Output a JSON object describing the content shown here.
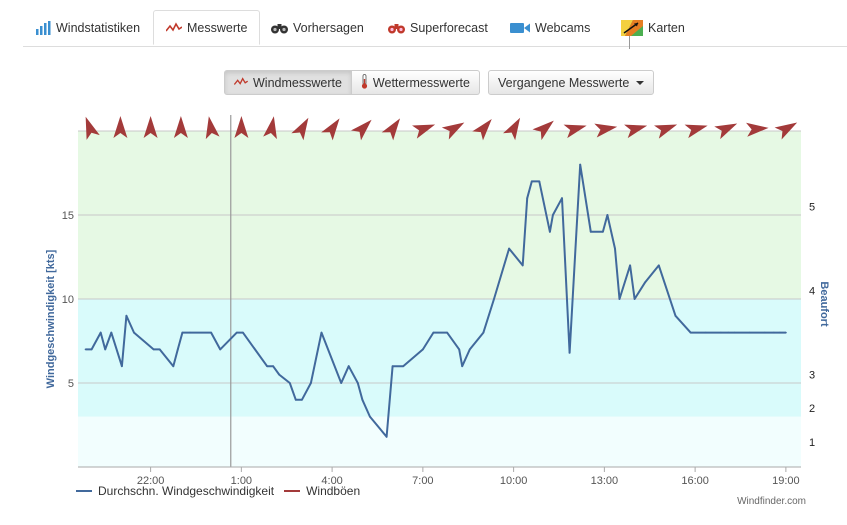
{
  "tabs": [
    {
      "label": "Windstatistiken",
      "icon": "bar-chart-icon",
      "active": false
    },
    {
      "label": "Messwerte",
      "icon": "wind-line-icon",
      "active": true
    },
    {
      "label": "Vorhersagen",
      "icon": "binoculars-icon",
      "active": false
    },
    {
      "label": "Superforecast",
      "icon": "binoculars-red-icon",
      "active": false
    },
    {
      "label": "Webcams",
      "icon": "camera-icon",
      "active": false
    },
    {
      "label": "Karten",
      "icon": "map-icon",
      "active": false
    }
  ],
  "toggle": {
    "wind_label": "Windmesswerte",
    "weather_label": "Wettermesswerte",
    "history_label": "Vergangene Messwerte"
  },
  "colors": {
    "line": "#41699c",
    "gust": "#a33a3a",
    "band_green": "#e6f9e4",
    "band_cyan": "#d9fbfb",
    "band_light": "#f2fefe"
  },
  "chart_data": {
    "type": "line",
    "ylabel": "Windgeschwindigkeit [kts]",
    "y2label": "Beaufort",
    "ylim": [
      0,
      20
    ],
    "yticks": [
      5,
      10,
      15
    ],
    "y2ticks": [
      {
        "label": "1",
        "kts": 1.5
      },
      {
        "label": "2",
        "kts": 3.5
      },
      {
        "label": "3",
        "kts": 5.5
      },
      {
        "label": "4",
        "kts": 10.5
      },
      {
        "label": "5",
        "kts": 15.5
      }
    ],
    "bands": [
      {
        "from": 0,
        "to": 3,
        "color": "#f2fefe"
      },
      {
        "from": 3,
        "to": 10,
        "color": "#d9fbfb"
      },
      {
        "from": 10,
        "to": 20,
        "color": "#e6f9e4"
      }
    ],
    "xlim": [
      19.6,
      43.5
    ],
    "xticks": [
      {
        "label": "22:00",
        "h": 22
      },
      {
        "label": "1:00",
        "h": 25
      },
      {
        "label": "4:00",
        "h": 28
      },
      {
        "label": "7:00",
        "h": 31
      },
      {
        "label": "10:00",
        "h": 34
      },
      {
        "label": "13:00",
        "h": 37
      },
      {
        "label": "16:00",
        "h": 40
      },
      {
        "label": "19:00",
        "h": 43
      }
    ],
    "now_marker_h": 24.65,
    "series": [
      {
        "name": "Durchschn. Windgeschwindigkeit",
        "x": [
          19.85,
          20.05,
          20.35,
          20.5,
          20.7,
          21.05,
          21.2,
          21.45,
          22.1,
          22.3,
          22.75,
          22.9,
          23.05,
          23.3,
          24.0,
          24.3,
          24.85,
          25.05,
          25.85,
          26.05,
          26.25,
          26.6,
          26.8,
          27.0,
          27.3,
          27.65,
          28.3,
          28.55,
          28.85,
          29.0,
          29.25,
          29.8,
          30.0,
          30.35,
          31.0,
          31.35,
          31.8,
          32.2,
          32.3,
          32.55,
          33.0,
          33.35,
          33.85,
          34.3,
          34.45,
          34.6,
          34.85,
          35.2,
          35.3,
          35.6,
          35.85,
          36.2,
          36.55,
          36.95,
          37.1,
          37.35,
          37.5,
          37.85,
          38.0,
          38.35,
          38.8,
          39.35,
          39.85,
          40.35,
          40.85,
          41.1,
          41.3,
          41.8,
          42.3,
          42.6,
          42.8,
          43.0
        ],
        "y": [
          7,
          7,
          8,
          7,
          8,
          6,
          9,
          8,
          7,
          7,
          6,
          7,
          8,
          8,
          8,
          7,
          8,
          8,
          6,
          6,
          5.5,
          5,
          4,
          4,
          5,
          8,
          5,
          6,
          5,
          4,
          3,
          1.8,
          6,
          6,
          7,
          8,
          8,
          7,
          6,
          7,
          8,
          10,
          13,
          12,
          16,
          17,
          17,
          14,
          15,
          16,
          6.8,
          18,
          14,
          14,
          15,
          13,
          10,
          12,
          10,
          11,
          12,
          9,
          8,
          8,
          8,
          8,
          8,
          8,
          8,
          8,
          8,
          8
        ]
      }
    ]
  },
  "arrows": [
    {
      "h": 20.0,
      "dir": 160
    },
    {
      "h": 21.0,
      "dir": 180
    },
    {
      "h": 22.0,
      "dir": 180
    },
    {
      "h": 23.0,
      "dir": 180
    },
    {
      "h": 24.0,
      "dir": 170
    },
    {
      "h": 25.0,
      "dir": 180
    },
    {
      "h": 26.0,
      "dir": 190
    },
    {
      "h": 27.0,
      "dir": 210
    },
    {
      "h": 28.0,
      "dir": 215
    },
    {
      "h": 29.0,
      "dir": 225
    },
    {
      "h": 30.0,
      "dir": 215
    },
    {
      "h": 31.0,
      "dir": 250
    },
    {
      "h": 32.0,
      "dir": 240
    },
    {
      "h": 33.0,
      "dir": 220
    },
    {
      "h": 34.0,
      "dir": 210
    },
    {
      "h": 35.0,
      "dir": 230
    },
    {
      "h": 36.0,
      "dir": 255
    },
    {
      "h": 37.0,
      "dir": 260
    },
    {
      "h": 38.0,
      "dir": 255
    },
    {
      "h": 39.0,
      "dir": 250
    },
    {
      "h": 40.0,
      "dir": 255
    },
    {
      "h": 41.0,
      "dir": 245
    },
    {
      "h": 42.0,
      "dir": 265
    },
    {
      "h": 43.0,
      "dir": 240
    }
  ],
  "legend": {
    "avg": "Durchschn. Windgeschwindigkeit",
    "gust": "Windböen"
  },
  "credit": "Windfinder.com"
}
